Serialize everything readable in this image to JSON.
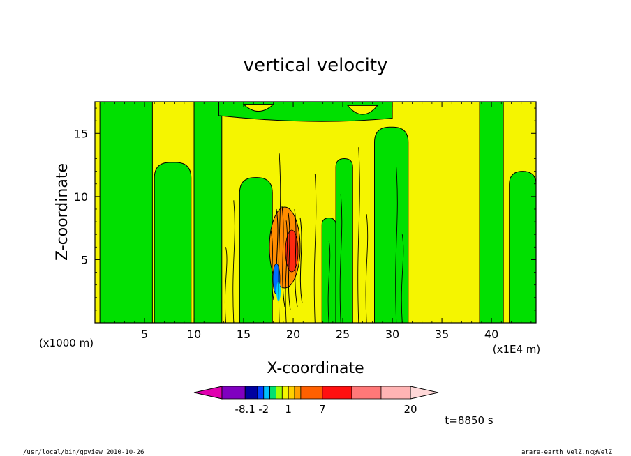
{
  "chart_data": {
    "type": "heatmap",
    "title": "vertical velocity",
    "xlabel": "X-coordinate",
    "ylabel": "Z-coordinate",
    "x_unit_left": "(x1000 m)",
    "x_unit_right": "(x1E4 m)",
    "xlim": [
      0,
      44.5
    ],
    "ylim": [
      0,
      17.5
    ],
    "x_ticks": [
      5,
      10,
      15,
      20,
      25,
      30,
      35,
      40
    ],
    "y_ticks": [
      5,
      10,
      15
    ],
    "background_color": "#f5f500",
    "green_color": "#00e000",
    "green_columns": [
      {
        "x0": 0.5,
        "x1": 5.8,
        "ztop": 17.5
      },
      {
        "x0": 6.0,
        "x1": 9.7,
        "ztop": 12.7
      },
      {
        "x0": 10.0,
        "x1": 12.8,
        "ztop": 17.5
      },
      {
        "x0": 14.6,
        "x1": 17.9,
        "ztop": 11.5
      },
      {
        "x0": 22.9,
        "x1": 24.3,
        "ztop": 8.3
      },
      {
        "x0": 24.3,
        "x1": 26.0,
        "ztop": 13.0
      },
      {
        "x0": 28.2,
        "x1": 31.6,
        "ztop": 15.5
      },
      {
        "x0": 38.8,
        "x1": 41.2,
        "ztop": 17.5
      },
      {
        "x0": 41.8,
        "x1": 44.5,
        "ztop": 12.0
      }
    ],
    "colorbar": {
      "levels_labels": [
        "-8.1",
        "-2",
        "1",
        "7",
        "20"
      ],
      "colors": [
        "#e000b0",
        "#8000c0",
        "#0000a0",
        "#0040ff",
        "#00c0ff",
        "#00e070",
        "#a0ff00",
        "#f5f500",
        "#ffd000",
        "#ffa000",
        "#ff6000",
        "#ff1010",
        "#ff7878",
        "#ffb4b4",
        "#ffd8d8"
      ]
    },
    "time_label": "t=8850 s"
  },
  "footer": {
    "left": "/usr/local/bin/gpview  2010-10-26",
    "right": "arare-earth_VelZ.nc@VelZ"
  }
}
